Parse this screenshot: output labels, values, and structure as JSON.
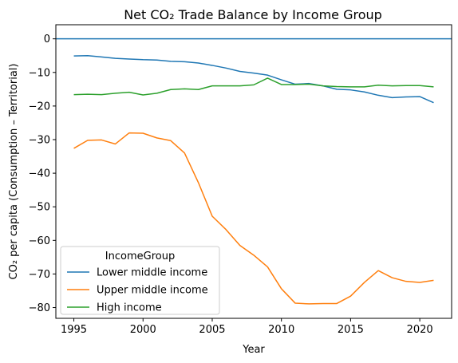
{
  "chart_data": {
    "type": "line",
    "title": "Net CO₂ Trade Balance by Income Group",
    "xlabel": "Year",
    "ylabel": "CO₂ per capita (Consumption – Territorial)",
    "xlim": [
      1993.7,
      2022.3
    ],
    "ylim": [
      -83.2,
      4.2
    ],
    "xticks": [
      1995,
      2000,
      2005,
      2010,
      2015,
      2020
    ],
    "yticks": [
      0,
      -10,
      -20,
      -30,
      -40,
      -50,
      -60,
      -70,
      -80
    ],
    "grid": false,
    "reference_line": {
      "y": 0,
      "color": "#1f77b4"
    },
    "legend": {
      "title": "IncomeGroup",
      "placement": "lower-left"
    },
    "x": [
      1995,
      1996,
      1997,
      1998,
      1999,
      2000,
      2001,
      2002,
      2003,
      2004,
      2005,
      2006,
      2007,
      2008,
      2009,
      2010,
      2011,
      2012,
      2013,
      2014,
      2015,
      2016,
      2017,
      2018,
      2019,
      2020,
      2021
    ],
    "series": [
      {
        "name": "Lower middle income",
        "color": "#1f77b4",
        "values": [
          -5.1,
          -5.0,
          -5.4,
          -5.8,
          -6.0,
          -6.2,
          -6.3,
          -6.7,
          -6.8,
          -7.2,
          -7.9,
          -8.7,
          -9.7,
          -10.2,
          -10.8,
          -12.2,
          -13.5,
          -13.3,
          -14.0,
          -15.0,
          -15.2,
          -15.8,
          -16.8,
          -17.5,
          -17.3,
          -17.2,
          -19.0
        ]
      },
      {
        "name": "Upper middle income",
        "color": "#ff7f0e",
        "values": [
          -32.6,
          -30.2,
          -30.1,
          -31.3,
          -28.0,
          -28.1,
          -29.5,
          -30.3,
          -34.0,
          -42.8,
          -52.8,
          -56.8,
          -61.5,
          -64.4,
          -67.9,
          -74.4,
          -78.7,
          -78.9,
          -78.8,
          -78.8,
          -76.6,
          -72.5,
          -69.0,
          -71.1,
          -72.2,
          -72.5,
          -71.9
        ]
      },
      {
        "name": "High income",
        "color": "#2ca02c",
        "values": [
          -16.6,
          -16.5,
          -16.6,
          -16.2,
          -15.9,
          -16.7,
          -16.2,
          -15.1,
          -14.9,
          -15.1,
          -14.0,
          -14.0,
          -14.0,
          -13.7,
          -11.7,
          -13.6,
          -13.6,
          -13.5,
          -14.0,
          -14.2,
          -14.3,
          -14.3,
          -13.8,
          -14.0,
          -13.9,
          -13.9,
          -14.3
        ]
      }
    ]
  }
}
